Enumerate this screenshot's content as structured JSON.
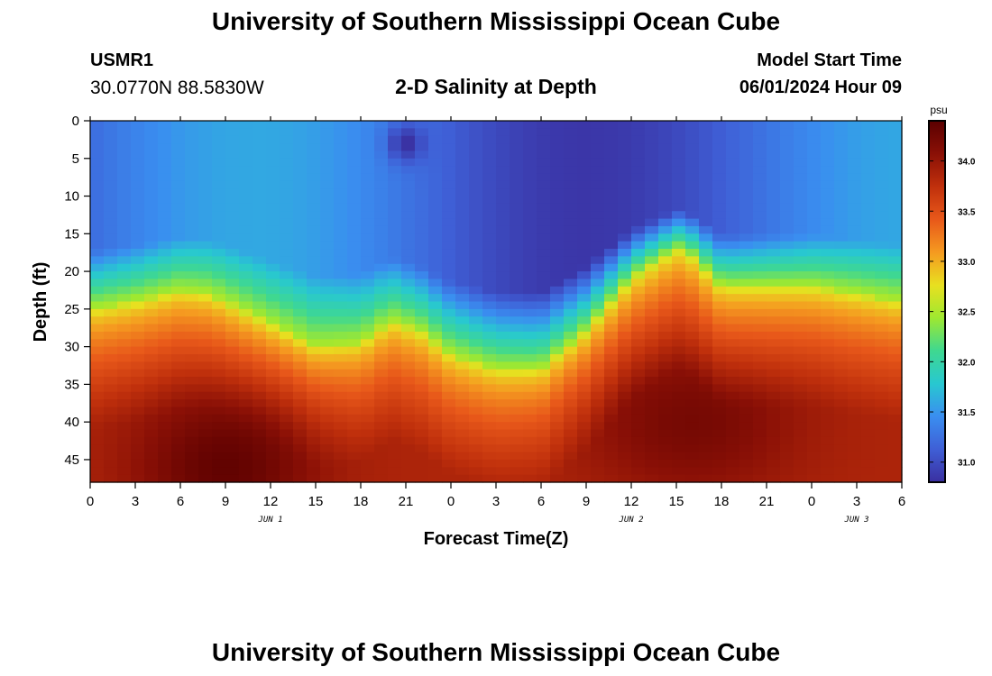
{
  "header": {
    "title": "University of Southern Mississippi Ocean Cube",
    "station_id": "USMR1",
    "station_coords": "30.0770N  88.5830W",
    "plot_title": "2-D Salinity at Depth",
    "model_label": "Model Start Time",
    "model_time": "06/01/2024 Hour 09"
  },
  "footer": {
    "title": "University of Southern Mississippi Ocean Cube"
  },
  "chart_data": {
    "type": "heatmap",
    "title": "2-D Salinity at Depth",
    "xlabel": "Forecast Time(Z)",
    "ylabel": "Depth (ft)",
    "x_tick_labels": [
      "0",
      "3",
      "6",
      "9",
      "12",
      "15",
      "18",
      "21",
      "0",
      "3",
      "6",
      "9",
      "12",
      "15",
      "18",
      "21",
      "0",
      "3",
      "6"
    ],
    "x_range_hours": [
      0,
      54
    ],
    "y_ticks": [
      0,
      5,
      10,
      15,
      20,
      25,
      30,
      35,
      40,
      45
    ],
    "y_range": [
      0,
      48
    ],
    "date_labels": [
      {
        "label": "JUN 1",
        "hour": 12
      },
      {
        "label": "JUN 2",
        "hour": 36
      },
      {
        "label": "JUN 3",
        "hour": 51
      }
    ],
    "colorbar": {
      "unit": "psu",
      "range": [
        30.8,
        34.4
      ],
      "ticks": [
        31.0,
        31.5,
        32.0,
        32.5,
        33.0,
        33.5,
        34.0
      ],
      "tick_labels": [
        "31.0",
        "31.5",
        "32.0",
        "32.5",
        "33.0",
        "33.5",
        "34.0"
      ],
      "colors": [
        "#3a2fa0",
        "#3f5fd6",
        "#3a8ef0",
        "#28c8d0",
        "#3fd890",
        "#9fe830",
        "#e8e020",
        "#f59a20",
        "#e8581a",
        "#c0300c",
        "#8a1006",
        "#5a0000"
      ]
    },
    "halocline_depth_ft": [
      {
        "hour": 0,
        "depth": 25
      },
      {
        "hour": 3,
        "depth": 24
      },
      {
        "hour": 6,
        "depth": 22.5
      },
      {
        "hour": 8,
        "depth": 23
      },
      {
        "hour": 12,
        "depth": 27
      },
      {
        "hour": 15,
        "depth": 30
      },
      {
        "hour": 18,
        "depth": 29.5
      },
      {
        "hour": 20,
        "depth": 26.5
      },
      {
        "hour": 22,
        "depth": 28
      },
      {
        "hour": 24,
        "depth": 31
      },
      {
        "hour": 27,
        "depth": 33
      },
      {
        "hour": 30,
        "depth": 33
      },
      {
        "hour": 33,
        "depth": 28
      },
      {
        "hour": 36,
        "depth": 21
      },
      {
        "hour": 39,
        "depth": 17
      },
      {
        "hour": 40,
        "depth": 18
      },
      {
        "hour": 42,
        "depth": 22
      },
      {
        "hour": 45,
        "depth": 22
      },
      {
        "hour": 48,
        "depth": 22
      },
      {
        "hour": 51,
        "depth": 23
      },
      {
        "hour": 54,
        "depth": 24
      }
    ],
    "salinity_bottom": {
      "min": 33.2,
      "max": 34.4
    },
    "salinity_surface": {
      "min": 30.85,
      "max": 31.6
    },
    "low_salinity_spot": {
      "hour": 21,
      "depth_ft": 3,
      "value": 30.8
    },
    "high_salinity_core": {
      "hour": 9,
      "depth_ft": 46,
      "value": 34.4
    }
  }
}
